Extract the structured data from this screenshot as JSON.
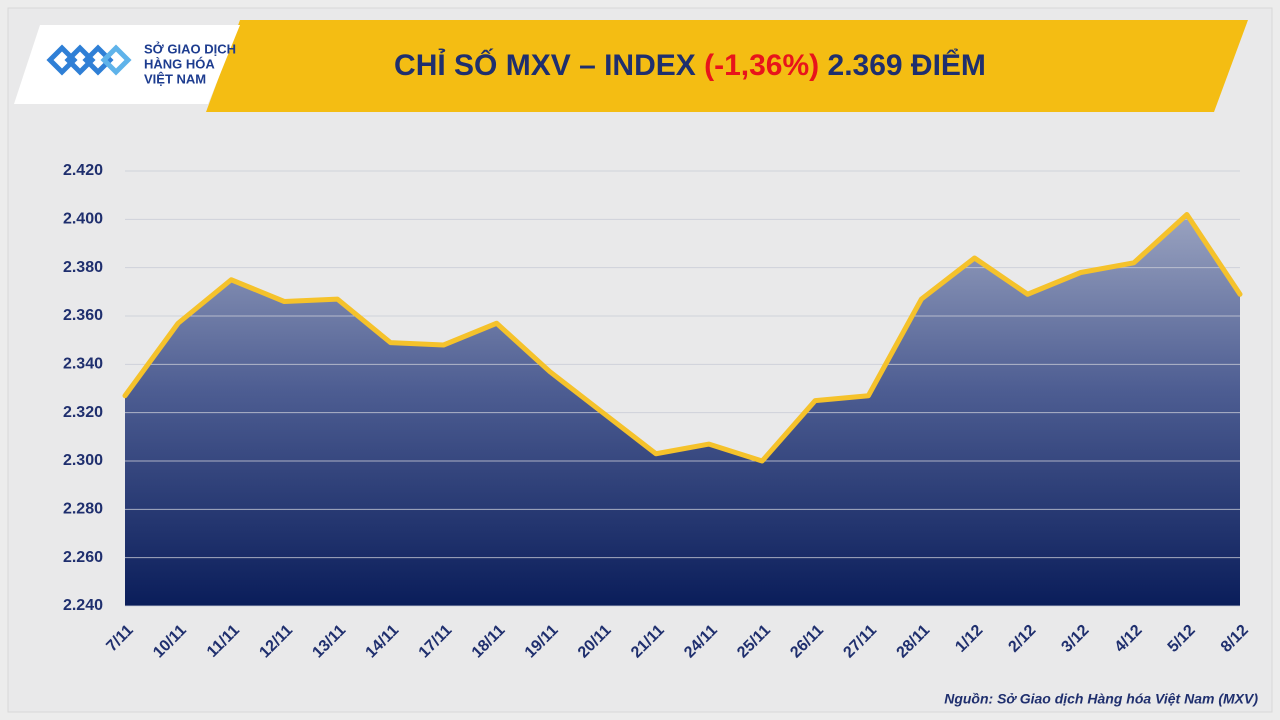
{
  "logo": {
    "lines": [
      "SỞ GIAO DỊCH",
      "HÀNG HÓA",
      "VIỆT NAM"
    ]
  },
  "chart_data": {
    "type": "area",
    "title": "CHỈ SỐ MXV – INDEX",
    "change": "(-1,36%)",
    "value_text": "2.369 ĐIỂM",
    "title_color": "#1f2f6e",
    "change_color": "#e8141b",
    "categories": [
      "7/11",
      "10/11",
      "11/11",
      "12/11",
      "13/11",
      "14/11",
      "17/11",
      "18/11",
      "19/11",
      "20/11",
      "21/11",
      "24/11",
      "25/11",
      "26/11",
      "27/11",
      "28/11",
      "1/12",
      "2/12",
      "3/12",
      "4/12",
      "5/12",
      "8/12"
    ],
    "values": [
      2327,
      2357,
      2375,
      2366,
      2367,
      2349,
      2348,
      2357,
      2337,
      2320,
      2303,
      2307,
      2300,
      2325,
      2327,
      2367,
      2384,
      2369,
      2378,
      2382,
      2402,
      2369
    ],
    "color": "#f5c22b",
    "ylim": [
      2240,
      2420
    ],
    "yticks": [
      {
        "value": 2240,
        "label": "2.240"
      },
      {
        "value": 2260,
        "label": "2.260"
      },
      {
        "value": 2280,
        "label": "2.280"
      },
      {
        "value": 2300,
        "label": "2.300"
      },
      {
        "value": 2320,
        "label": "2.320"
      },
      {
        "value": 2340,
        "label": "2.340"
      },
      {
        "value": 2360,
        "label": "2.360"
      },
      {
        "value": 2380,
        "label": "2.380"
      },
      {
        "value": 2400,
        "label": "2.400"
      },
      {
        "value": 2420,
        "label": "2.420"
      }
    ],
    "grid": true,
    "source": "Nguồn: Sở Giao dịch Hàng hóa Việt Nam (MXV)"
  }
}
